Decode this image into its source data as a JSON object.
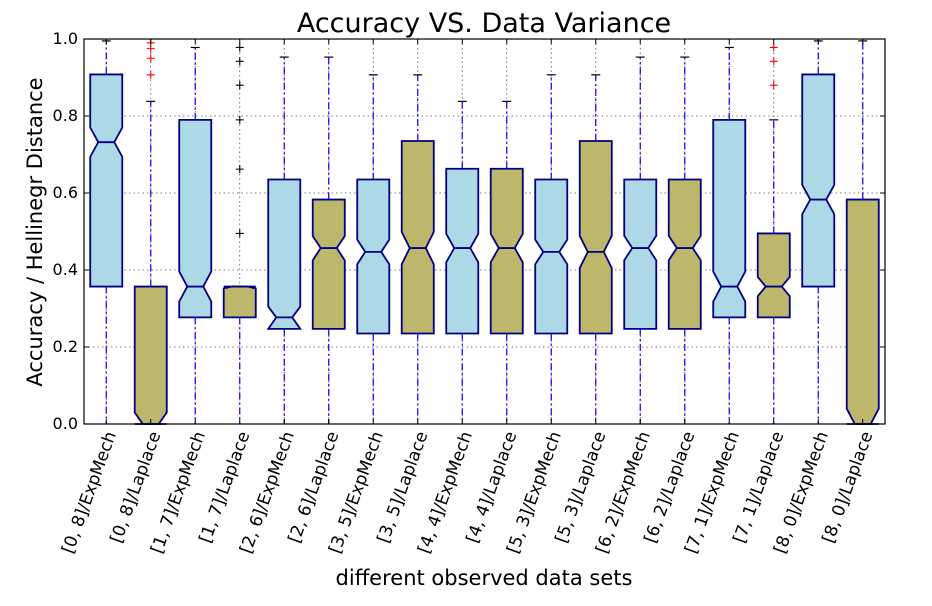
{
  "chart_data": {
    "type": "boxplot",
    "title": "Accuracy VS. Data Variance",
    "xlabel": "different observed data sets",
    "ylabel": "Accuracy / Hellinegr Distance",
    "ylim": [
      0.0,
      1.0
    ],
    "yticks": [
      "0.0",
      "0.2",
      "0.4",
      "0.6",
      "0.8",
      "1.0"
    ],
    "grid": true,
    "colors": {
      "ExpMech": "#add8e6",
      "Laplace": "#bdb76b",
      "box_edge": "#000080",
      "whisker": "#0000ff",
      "flier": "#ff0000",
      "grid": "#555555"
    },
    "categories": [
      "[0, 8]/ExpMech",
      "[0, 8]/Laplace",
      "[1, 7]/ExpMech",
      "[1, 7]/Laplace",
      "[2, 6]/ExpMech",
      "[2, 6]/Laplace",
      "[3, 5]/ExpMech",
      "[3, 5]/Laplace",
      "[4, 4]/ExpMech",
      "[4, 4]/Laplace",
      "[5, 3]/ExpMech",
      "[5, 3]/Laplace",
      "[6, 2]/ExpMech",
      "[6, 2]/Laplace",
      "[7, 1]/ExpMech",
      "[7, 1]/Laplace",
      "[8, 0]/ExpMech",
      "[8, 0]/Laplace"
    ],
    "boxes": [
      {
        "q1": 0.357,
        "median": 0.732,
        "q3": 0.908,
        "notch_lo": 0.694,
        "notch_hi": 0.77,
        "whisker_lo": 0.0,
        "whisker_hi": 0.995,
        "fliers": [],
        "fliers_red": false
      },
      {
        "q1": 0.0,
        "median": 0.0,
        "q3": 0.357,
        "notch_lo": 0.0,
        "notch_hi": 0.03,
        "whisker_lo": 0.0,
        "whisker_hi": 0.838,
        "fliers": [
          0.907,
          0.95,
          0.975,
          0.99
        ],
        "fliers_red": true
      },
      {
        "q1": 0.277,
        "median": 0.357,
        "q3": 0.79,
        "notch_lo": 0.318,
        "notch_hi": 0.396,
        "whisker_lo": 0.0,
        "whisker_hi": 0.978,
        "fliers": [],
        "fliers_red": false
      },
      {
        "q1": 0.277,
        "median": 0.357,
        "q3": 0.357,
        "notch_lo": 0.352,
        "notch_hi": 0.362,
        "whisker_lo": 0.0,
        "whisker_hi": 0.357,
        "fliers": [
          0.495,
          0.662,
          0.79,
          0.88,
          0.942,
          0.978
        ],
        "fliers_red": false
      },
      {
        "q1": 0.247,
        "median": 0.277,
        "q3": 0.635,
        "notch_lo": 0.247,
        "notch_hi": 0.305,
        "whisker_lo": 0.0,
        "whisker_hi": 0.953,
        "fliers": [],
        "fliers_red": false
      },
      {
        "q1": 0.247,
        "median": 0.457,
        "q3": 0.583,
        "notch_lo": 0.425,
        "notch_hi": 0.488,
        "whisker_lo": 0.0,
        "whisker_hi": 0.953,
        "fliers": [],
        "fliers_red": false
      },
      {
        "q1": 0.235,
        "median": 0.447,
        "q3": 0.635,
        "notch_lo": 0.415,
        "notch_hi": 0.479,
        "whisker_lo": 0.0,
        "whisker_hi": 0.907,
        "fliers": [],
        "fliers_red": false
      },
      {
        "q1": 0.235,
        "median": 0.457,
        "q3": 0.735,
        "notch_lo": 0.415,
        "notch_hi": 0.499,
        "whisker_lo": 0.0,
        "whisker_hi": 0.907,
        "fliers": [],
        "fliers_red": false
      },
      {
        "q1": 0.235,
        "median": 0.457,
        "q3": 0.663,
        "notch_lo": 0.42,
        "notch_hi": 0.494,
        "whisker_lo": 0.0,
        "whisker_hi": 0.838,
        "fliers": [],
        "fliers_red": false
      },
      {
        "q1": 0.235,
        "median": 0.457,
        "q3": 0.663,
        "notch_lo": 0.42,
        "notch_hi": 0.494,
        "whisker_lo": 0.0,
        "whisker_hi": 0.838,
        "fliers": [],
        "fliers_red": false
      },
      {
        "q1": 0.235,
        "median": 0.447,
        "q3": 0.635,
        "notch_lo": 0.415,
        "notch_hi": 0.479,
        "whisker_lo": 0.0,
        "whisker_hi": 0.907,
        "fliers": [],
        "fliers_red": false
      },
      {
        "q1": 0.235,
        "median": 0.447,
        "q3": 0.735,
        "notch_lo": 0.405,
        "notch_hi": 0.489,
        "whisker_lo": 0.0,
        "whisker_hi": 0.907,
        "fliers": [],
        "fliers_red": false
      },
      {
        "q1": 0.247,
        "median": 0.457,
        "q3": 0.635,
        "notch_lo": 0.425,
        "notch_hi": 0.489,
        "whisker_lo": 0.0,
        "whisker_hi": 0.953,
        "fliers": [],
        "fliers_red": false
      },
      {
        "q1": 0.247,
        "median": 0.457,
        "q3": 0.635,
        "notch_lo": 0.425,
        "notch_hi": 0.489,
        "whisker_lo": 0.0,
        "whisker_hi": 0.953,
        "fliers": [],
        "fliers_red": false
      },
      {
        "q1": 0.277,
        "median": 0.357,
        "q3": 0.79,
        "notch_lo": 0.318,
        "notch_hi": 0.396,
        "whisker_lo": 0.0,
        "whisker_hi": 0.978,
        "fliers": [],
        "fliers_red": false
      },
      {
        "q1": 0.277,
        "median": 0.357,
        "q3": 0.495,
        "notch_lo": 0.332,
        "notch_hi": 0.382,
        "whisker_lo": 0.0,
        "whisker_hi": 0.79,
        "fliers": [
          0.88,
          0.942,
          0.978
        ],
        "fliers_red": true
      },
      {
        "q1": 0.357,
        "median": 0.583,
        "q3": 0.908,
        "notch_lo": 0.545,
        "notch_hi": 0.621,
        "whisker_lo": 0.0,
        "whisker_hi": 0.995,
        "fliers": [],
        "fliers_red": false
      },
      {
        "q1": 0.0,
        "median": 0.0,
        "q3": 0.583,
        "notch_lo": 0.0,
        "notch_hi": 0.04,
        "whisker_lo": 0.0,
        "whisker_hi": 0.995,
        "fliers": [],
        "fliers_red": false
      }
    ]
  }
}
